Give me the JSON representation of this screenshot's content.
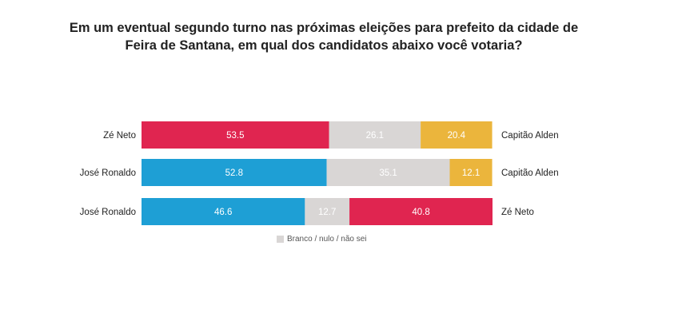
{
  "chart_data": {
    "type": "bar",
    "stacked": true,
    "orientation": "horizontal",
    "title_lines": [
      "Em um eventual segundo turno nas próximas eleições para prefeito da cidade de",
      "Feira de Santana, em qual dos candidatos abaixo você votaria?"
    ],
    "rows": [
      {
        "left_label": "Zé Neto",
        "right_label": "Capitão Alden",
        "segments": [
          {
            "value": 53.5,
            "label": "53.5",
            "color": "#e02550"
          },
          {
            "value": 26.1,
            "label": "26.1",
            "color": "#d9d6d5"
          },
          {
            "value": 20.4,
            "label": "20.4",
            "color": "#ebb53c"
          }
        ]
      },
      {
        "left_label": "José Ronaldo",
        "right_label": "Capitão Alden",
        "segments": [
          {
            "value": 52.8,
            "label": "52.8",
            "color": "#1e9fd5"
          },
          {
            "value": 35.1,
            "label": "35.1",
            "color": "#d9d6d5"
          },
          {
            "value": 12.1,
            "label": "12.1",
            "color": "#ebb53c"
          }
        ]
      },
      {
        "left_label": "José Ronaldo",
        "right_label": "Zé Neto",
        "segments": [
          {
            "value": 46.6,
            "label": "46.6",
            "color": "#1e9fd5"
          },
          {
            "value": 12.7,
            "label": "12.7",
            "color": "#d9d6d5"
          },
          {
            "value": 40.8,
            "label": "40.8",
            "color": "#e02550"
          }
        ]
      }
    ],
    "legend": {
      "label": "Branco / nulo / não sei",
      "color": "#d9d6d5"
    },
    "xlim": [
      0,
      100.1
    ]
  }
}
